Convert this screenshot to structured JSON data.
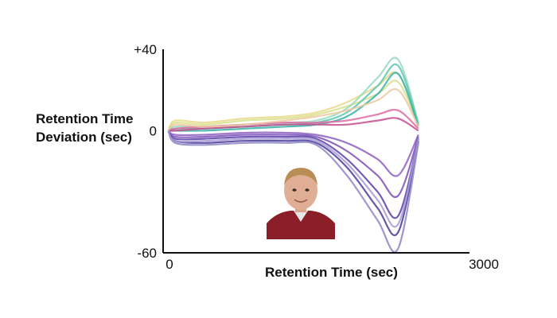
{
  "chart_data": {
    "type": "line",
    "title": "",
    "xlabel": "Retention Time (sec)",
    "ylabel_lines": [
      "Retention Time",
      "Deviation (sec)"
    ],
    "xlim": [
      0,
      3000
    ],
    "ylim": [
      -60,
      40
    ],
    "x_ticks": [
      {
        "value": 0,
        "label": "0"
      },
      {
        "value": 3000,
        "label": "3000"
      }
    ],
    "y_ticks": [
      {
        "value": 40,
        "label": "+40"
      },
      {
        "value": 0,
        "label": "0"
      },
      {
        "value": -60,
        "label": "-60"
      }
    ],
    "grid": false,
    "legend": "none",
    "note": "",
    "series_description": [],
    "series": [
      {
        "color": "#e8d98a",
        "values": [
          [
            50,
            0
          ],
          [
            120,
            5
          ],
          [
            400,
            4
          ],
          [
            800,
            6
          ],
          [
            1200,
            7
          ],
          [
            1500,
            9
          ],
          [
            1800,
            14
          ],
          [
            2100,
            22
          ],
          [
            2300,
            28
          ],
          [
            2500,
            3
          ]
        ]
      },
      {
        "color": "#d8e08c",
        "values": [
          [
            50,
            0
          ],
          [
            120,
            4
          ],
          [
            400,
            3
          ],
          [
            800,
            5
          ],
          [
            1200,
            6
          ],
          [
            1500,
            8
          ],
          [
            1800,
            12
          ],
          [
            2100,
            18
          ],
          [
            2300,
            24
          ],
          [
            2500,
            2
          ]
        ]
      },
      {
        "color": "#9ad8c0",
        "values": [
          [
            50,
            0
          ],
          [
            120,
            2
          ],
          [
            400,
            2
          ],
          [
            800,
            3
          ],
          [
            1200,
            4
          ],
          [
            1500,
            5
          ],
          [
            1800,
            11
          ],
          [
            2100,
            26
          ],
          [
            2300,
            35
          ],
          [
            2500,
            4
          ]
        ]
      },
      {
        "color": "#5cc6b2",
        "values": [
          [
            50,
            0
          ],
          [
            120,
            1
          ],
          [
            400,
            1
          ],
          [
            800,
            2
          ],
          [
            1200,
            3
          ],
          [
            1500,
            4
          ],
          [
            1800,
            9
          ],
          [
            2100,
            22
          ],
          [
            2300,
            32
          ],
          [
            2500,
            3
          ]
        ]
      },
      {
        "color": "#36b3a8",
        "values": [
          [
            50,
            0
          ],
          [
            120,
            0
          ],
          [
            400,
            0
          ],
          [
            800,
            1
          ],
          [
            1200,
            2
          ],
          [
            1500,
            3
          ],
          [
            1800,
            7
          ],
          [
            2100,
            18
          ],
          [
            2300,
            28
          ],
          [
            2500,
            2
          ]
        ]
      },
      {
        "color": "#e26aa2",
        "values": [
          [
            50,
            0
          ],
          [
            120,
            1
          ],
          [
            400,
            2
          ],
          [
            800,
            3
          ],
          [
            1200,
            4
          ],
          [
            1500,
            4
          ],
          [
            1800,
            5
          ],
          [
            2100,
            8
          ],
          [
            2300,
            10
          ],
          [
            2500,
            1
          ]
        ]
      },
      {
        "color": "#c44d8c",
        "values": [
          [
            50,
            0
          ],
          [
            120,
            0
          ],
          [
            400,
            1
          ],
          [
            800,
            2
          ],
          [
            1200,
            3
          ],
          [
            1500,
            3
          ],
          [
            1800,
            3
          ],
          [
            2100,
            5
          ],
          [
            2300,
            6
          ],
          [
            2500,
            0
          ]
        ]
      },
      {
        "color": "#8e5fc2",
        "values": [
          [
            50,
            0
          ],
          [
            120,
            -2
          ],
          [
            400,
            -2
          ],
          [
            800,
            -1
          ],
          [
            1200,
            -1
          ],
          [
            1500,
            -2
          ],
          [
            1800,
            -6
          ],
          [
            2100,
            -14
          ],
          [
            2300,
            -22
          ],
          [
            2500,
            -2
          ]
        ]
      },
      {
        "color": "#7b4fb8",
        "values": [
          [
            50,
            0
          ],
          [
            120,
            -3
          ],
          [
            400,
            -3
          ],
          [
            800,
            -2
          ],
          [
            1200,
            -2
          ],
          [
            1500,
            -3
          ],
          [
            1800,
            -10
          ],
          [
            2100,
            -22
          ],
          [
            2300,
            -32
          ],
          [
            2500,
            -3
          ]
        ]
      },
      {
        "color": "#5a40a8",
        "values": [
          [
            50,
            0
          ],
          [
            120,
            -4
          ],
          [
            400,
            -4
          ],
          [
            800,
            -3
          ],
          [
            1200,
            -3
          ],
          [
            1500,
            -4
          ],
          [
            1800,
            -14
          ],
          [
            2100,
            -30
          ],
          [
            2300,
            -42
          ],
          [
            2500,
            -4
          ]
        ]
      },
      {
        "color": "#4a3a9a",
        "values": [
          [
            50,
            0
          ],
          [
            120,
            -5
          ],
          [
            400,
            -6
          ],
          [
            800,
            -5
          ],
          [
            1200,
            -5
          ],
          [
            1500,
            -6
          ],
          [
            1800,
            -18
          ],
          [
            2100,
            -38
          ],
          [
            2300,
            -50
          ],
          [
            2500,
            -5
          ]
        ]
      },
      {
        "color": "#8a86c6",
        "values": [
          [
            50,
            0
          ],
          [
            120,
            -6
          ],
          [
            400,
            -7
          ],
          [
            800,
            -6
          ],
          [
            1200,
            -6
          ],
          [
            1500,
            -7
          ],
          [
            1800,
            -22
          ],
          [
            2100,
            -44
          ],
          [
            2300,
            -58
          ],
          [
            2500,
            -6
          ]
        ]
      },
      {
        "color": "#a79ad4",
        "values": [
          [
            50,
            0
          ],
          [
            120,
            -5
          ],
          [
            400,
            -5
          ],
          [
            800,
            -4
          ],
          [
            1200,
            -4
          ],
          [
            1500,
            -5
          ],
          [
            1800,
            -16
          ],
          [
            2100,
            -34
          ],
          [
            2300,
            -46
          ],
          [
            2500,
            -4
          ]
        ]
      },
      {
        "color": "#f0c8a0",
        "values": [
          [
            50,
            0
          ],
          [
            120,
            3
          ],
          [
            400,
            2
          ],
          [
            800,
            3
          ],
          [
            1200,
            5
          ],
          [
            1500,
            7
          ],
          [
            1800,
            10
          ],
          [
            2100,
            15
          ],
          [
            2300,
            20
          ],
          [
            2500,
            2
          ]
        ]
      }
    ]
  }
}
